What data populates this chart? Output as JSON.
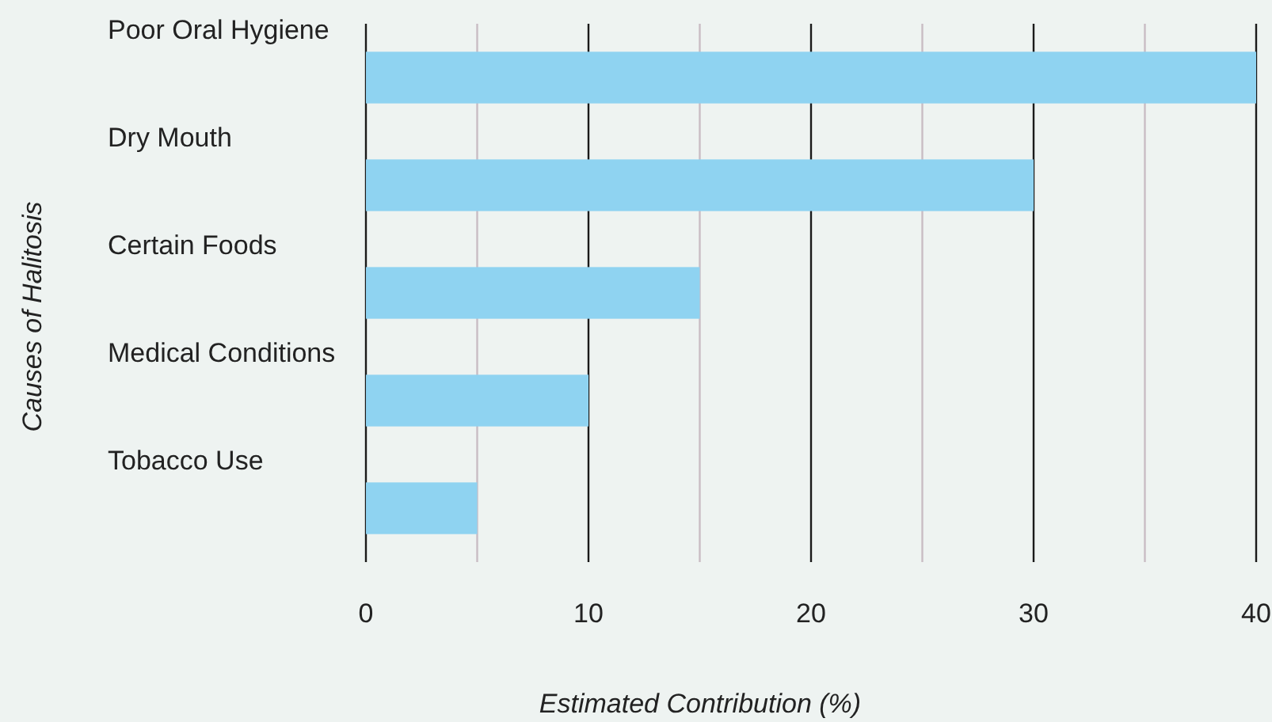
{
  "chart_data": {
    "type": "bar",
    "orientation": "horizontal",
    "xlabel": "Estimated Contribution (%)",
    "ylabel": "Causes of Halitosis",
    "categories": [
      "Poor Oral Hygiene",
      "Dry Mouth",
      "Certain Foods",
      "Medical Conditions",
      "Tobacco Use"
    ],
    "values": [
      40,
      30,
      15,
      10,
      5
    ],
    "color": "#8fd3f1",
    "xlim": [
      0,
      40
    ],
    "xticks": [
      0,
      {
        "value": 5,
        "label": null
      },
      10,
      {
        "value": 15,
        "label": null
      },
      20,
      {
        "value": 25,
        "label": null
      },
      30,
      {
        "value": 35,
        "label": null
      },
      40
    ],
    "grid": "x"
  }
}
